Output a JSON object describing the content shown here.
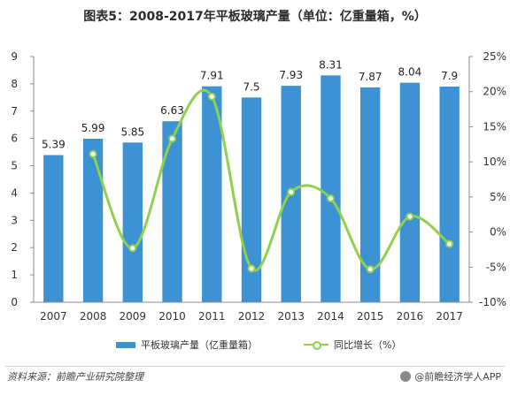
{
  "title": "图表5：2008-2017年平板玻璃产量（单位：亿重量箱，%）",
  "chart_data": {
    "type": "bar",
    "categories": [
      "2007",
      "2008",
      "2009",
      "2010",
      "2011",
      "2012",
      "2013",
      "2014",
      "2015",
      "2016",
      "2017"
    ],
    "series": [
      {
        "name": "平板玻璃产量（亿重量箱）",
        "type": "bar",
        "axis": "left",
        "values": [
          5.39,
          5.99,
          5.85,
          6.63,
          7.91,
          7.5,
          7.93,
          8.31,
          7.87,
          8.04,
          7.9
        ],
        "labels": [
          "5.39",
          "5.99",
          "5.85",
          "6.63",
          "7.91",
          "7.5",
          "7.93",
          "8.31",
          "7.87",
          "8.04",
          "7.9"
        ]
      },
      {
        "name": "同比增长（%）",
        "type": "line",
        "axis": "right",
        "values": [
          null,
          11.1,
          -2.3,
          13.3,
          19.3,
          -5.2,
          5.7,
          4.8,
          -5.3,
          2.2,
          -1.7
        ]
      }
    ],
    "y_left": {
      "range": [
        0,
        9
      ],
      "ticks": [
        "0",
        "1",
        "2",
        "3",
        "4",
        "5",
        "6",
        "7",
        "8",
        "9"
      ]
    },
    "y_right": {
      "range": [
        -10,
        25
      ],
      "ticks": [
        "-10%",
        "-5%",
        "0%",
        "5%",
        "10%",
        "15%",
        "20%",
        "25%"
      ]
    },
    "grid": false,
    "legend_position": "bottom",
    "colors": {
      "bar": "#3d92d3",
      "line": "#8fd14f"
    }
  },
  "legend": {
    "bar_label": "平板玻璃产量（亿重量箱）",
    "line_label": "同比增长（%）"
  },
  "footer": {
    "source": "资料来源：前瞻产业研究院整理",
    "brand": "@前瞻经济学人APP"
  }
}
